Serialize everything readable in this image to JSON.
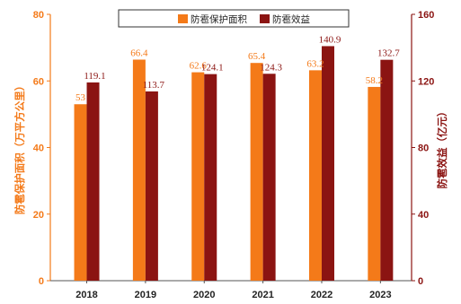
{
  "chart_data": {
    "type": "bar",
    "categories": [
      "2018",
      "2019",
      "2020",
      "2021",
      "2022",
      "2023"
    ],
    "series": [
      {
        "name": "防雹保护面积",
        "axis": "left",
        "color": "#f47a19",
        "values": [
          53,
          66.4,
          62.6,
          65.4,
          63.2,
          58.2
        ],
        "labels": [
          "53",
          "66.4",
          "62.6",
          "65.4",
          "63.2",
          "58.2"
        ]
      },
      {
        "name": "防雹效益",
        "axis": "right",
        "color": "#8b1412",
        "values": [
          119.1,
          113.7,
          124.1,
          124.3,
          140.9,
          132.7
        ],
        "labels": [
          "119.1",
          "113.7",
          "124.1",
          "124.3",
          "140.9",
          "132.7"
        ]
      }
    ],
    "y_left": {
      "label": "防雹保护面积（万平方公里）",
      "range": [
        0,
        80
      ],
      "ticks": [
        "0",
        "20",
        "40",
        "60",
        "80"
      ],
      "color": "#f47a19"
    },
    "y_right": {
      "label": "防雹效益（亿元）",
      "range": [
        0,
        160
      ],
      "ticks": [
        "0",
        "40",
        "80",
        "120",
        "160"
      ],
      "color": "#8b1412"
    },
    "legend": "top-center",
    "grid": false
  }
}
